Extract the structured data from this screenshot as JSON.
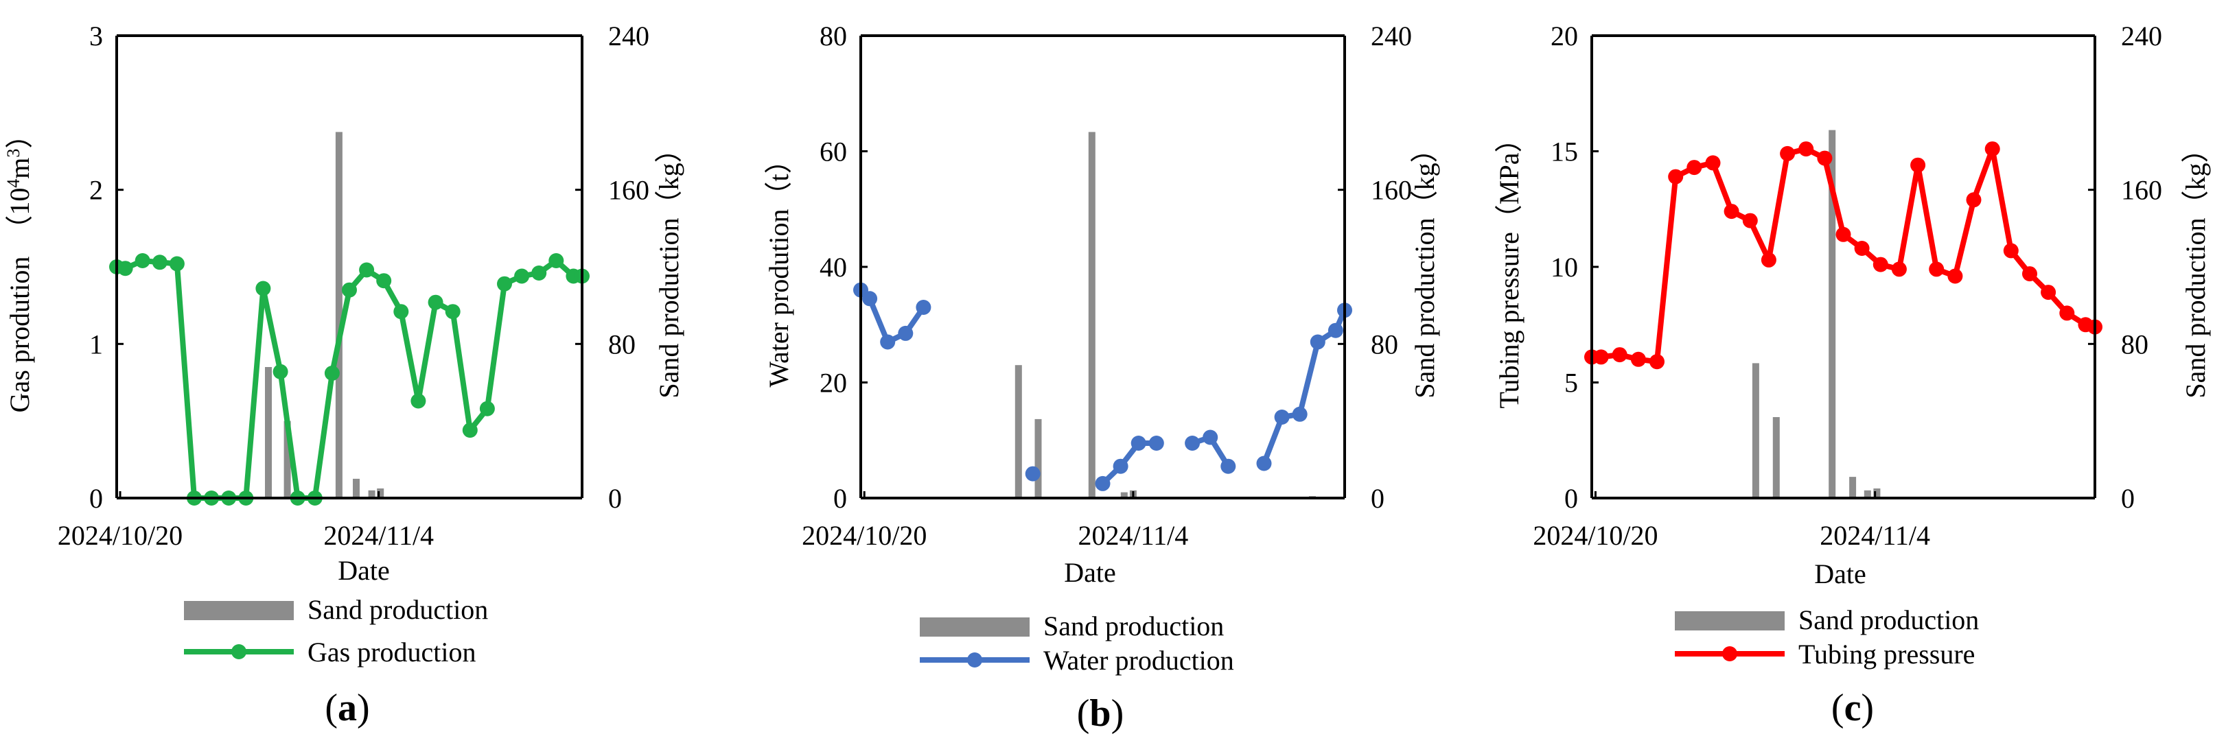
{
  "colors": {
    "sand": "#8c8c8c",
    "gas": "#1fb04a",
    "water": "#4472c4",
    "pressure": "#ff0000",
    "axis": "#000000"
  },
  "chart_data": [
    {
      "id": "a",
      "panel_label": {
        "open": "(",
        "letter": "a",
        "close": ")"
      },
      "type": "bar+line",
      "xlabel": "Date",
      "x_ticks": [
        "2024/10/20",
        "2024/11/4"
      ],
      "left_axis": {
        "label_parts": [
          "Gas prodution　（10",
          "4",
          "m",
          "3",
          "）"
        ],
        "ticks": [
          "0",
          "1",
          "2",
          "3"
        ],
        "range": [
          0,
          3
        ]
      },
      "right_axis": {
        "label": "Sand production（kg）",
        "ticks": [
          "0",
          "80",
          "160",
          "240"
        ],
        "range": [
          0,
          240
        ]
      },
      "legend": [
        "Sand production",
        "Gas production"
      ],
      "sand": [
        {
          "day": 8.6,
          "value": 68
        },
        {
          "day": 9.7,
          "value": 40
        },
        {
          "day": 12.7,
          "value": 190
        },
        {
          "day": 13.7,
          "value": 10
        },
        {
          "day": 14.6,
          "value": 4
        },
        {
          "day": 15.1,
          "value": 5
        }
      ],
      "line": {
        "name": "Gas production",
        "segments": [
          [
            {
              "day": -0.2,
              "value": 1.5
            },
            {
              "day": 0.3,
              "value": 1.49
            },
            {
              "day": 1.3,
              "value": 1.54
            },
            {
              "day": 2.3,
              "value": 1.53
            },
            {
              "day": 3.3,
              "value": 1.52
            },
            {
              "day": 4.3,
              "value": 0
            },
            {
              "day": 5.3,
              "value": 0
            },
            {
              "day": 6.3,
              "value": 0
            },
            {
              "day": 7.3,
              "value": 0
            },
            {
              "day": 8.3,
              "value": 1.36
            },
            {
              "day": 9.3,
              "value": 0.82
            },
            {
              "day": 10.3,
              "value": 0
            },
            {
              "day": 11.3,
              "value": 0
            },
            {
              "day": 12.3,
              "value": 0.81
            },
            {
              "day": 13.3,
              "value": 1.35
            },
            {
              "day": 14.3,
              "value": 1.48
            },
            {
              "day": 15.3,
              "value": 1.41
            },
            {
              "day": 16.3,
              "value": 1.21
            },
            {
              "day": 17.3,
              "value": 0.63
            },
            {
              "day": 18.3,
              "value": 1.27
            },
            {
              "day": 19.3,
              "value": 1.21
            },
            {
              "day": 20.3,
              "value": 0.44
            },
            {
              "day": 21.3,
              "value": 0.58
            },
            {
              "day": 22.3,
              "value": 1.39
            },
            {
              "day": 23.3,
              "value": 1.44
            },
            {
              "day": 24.3,
              "value": 1.46
            },
            {
              "day": 25.3,
              "value": 1.54
            },
            {
              "day": 26.3,
              "value": 1.44
            },
            {
              "day": 26.8,
              "value": 1.44
            }
          ]
        ]
      }
    },
    {
      "id": "b",
      "panel_label": {
        "open": "(",
        "letter": "b",
        "close": ")"
      },
      "type": "bar+line",
      "xlabel": "Date",
      "x_ticks": [
        "2024/10/20",
        "2024/11/4"
      ],
      "left_axis": {
        "label_parts": [
          "Water prodution（t）"
        ],
        "ticks": [
          "0",
          "20",
          "40",
          "60",
          "80"
        ],
        "range": [
          0,
          80
        ]
      },
      "right_axis": {
        "label": "Sand production（kg）",
        "ticks": [
          "0",
          "80",
          "160",
          "240"
        ],
        "range": [
          0,
          240
        ]
      },
      "legend": [
        "Sand production",
        "Water production"
      ],
      "sand": [
        {
          "day": 8.6,
          "value": 69
        },
        {
          "day": 9.7,
          "value": 41
        },
        {
          "day": 12.7,
          "value": 190
        },
        {
          "day": 14.5,
          "value": 3
        },
        {
          "day": 15.0,
          "value": 4
        },
        {
          "day": 25.0,
          "value": 1
        }
      ],
      "line": {
        "name": "Water production",
        "segments": [
          [
            {
              "day": -0.2,
              "value": 36
            },
            {
              "day": 0.3,
              "value": 34.5
            },
            {
              "day": 1.3,
              "value": 27
            },
            {
              "day": 2.3,
              "value": 28.5
            },
            {
              "day": 3.3,
              "value": 33
            }
          ],
          [
            {
              "day": 9.4,
              "value": 4.2
            }
          ],
          [
            {
              "day": 13.3,
              "value": 2.5
            },
            {
              "day": 14.3,
              "value": 5.5
            },
            {
              "day": 15.3,
              "value": 9.5
            },
            {
              "day": 16.3,
              "value": 9.5
            }
          ],
          [
            {
              "day": 18.3,
              "value": 9.5
            },
            {
              "day": 19.3,
              "value": 10.5
            },
            {
              "day": 20.3,
              "value": 5.5
            }
          ],
          [
            {
              "day": 22.3,
              "value": 6.0
            },
            {
              "day": 23.3,
              "value": 14.0
            },
            {
              "day": 24.3,
              "value": 14.5
            },
            {
              "day": 25.3,
              "value": 27.0
            },
            {
              "day": 26.3,
              "value": 29.0
            },
            {
              "day": 26.8,
              "value": 32.5
            }
          ]
        ]
      }
    },
    {
      "id": "c",
      "panel_label": {
        "open": "(",
        "letter": "c",
        "close": ")"
      },
      "type": "bar+line",
      "xlabel": "Date",
      "x_ticks": [
        "2024/10/20",
        "2024/11/4"
      ],
      "left_axis": {
        "label_parts": [
          "Tubing pressure（MPa）"
        ],
        "ticks": [
          "0",
          "5",
          "10",
          "15",
          "20"
        ],
        "range": [
          0,
          20
        ]
      },
      "right_axis": {
        "label": "Sand production（kg）",
        "ticks": [
          "0",
          "80",
          "160",
          "240"
        ],
        "range": [
          0,
          240
        ]
      },
      "legend": [
        "Sand production",
        "Tubing pressure"
      ],
      "sand": [
        {
          "day": 8.6,
          "value": 70
        },
        {
          "day": 9.7,
          "value": 42
        },
        {
          "day": 12.7,
          "value": 191
        },
        {
          "day": 13.8,
          "value": 11
        },
        {
          "day": 14.6,
          "value": 4
        },
        {
          "day": 15.1,
          "value": 5
        }
      ],
      "line": {
        "name": "Tubing pressure",
        "segments": [
          [
            {
              "day": -0.2,
              "value": 6.1
            },
            {
              "day": 0.3,
              "value": 6.1
            },
            {
              "day": 1.3,
              "value": 6.2
            },
            {
              "day": 2.3,
              "value": 6.0
            },
            {
              "day": 3.3,
              "value": 5.9
            },
            {
              "day": 4.3,
              "value": 13.9
            },
            {
              "day": 5.3,
              "value": 14.3
            },
            {
              "day": 6.3,
              "value": 14.5
            },
            {
              "day": 7.3,
              "value": 12.4
            },
            {
              "day": 8.3,
              "value": 12.0
            },
            {
              "day": 9.3,
              "value": 10.3
            },
            {
              "day": 10.3,
              "value": 14.9
            },
            {
              "day": 11.3,
              "value": 15.1
            },
            {
              "day": 12.3,
              "value": 14.7
            },
            {
              "day": 13.3,
              "value": 11.4
            },
            {
              "day": 14.3,
              "value": 10.8
            },
            {
              "day": 15.3,
              "value": 10.1
            },
            {
              "day": 16.3,
              "value": 9.9
            },
            {
              "day": 17.3,
              "value": 14.4
            },
            {
              "day": 18.3,
              "value": 9.9
            },
            {
              "day": 19.3,
              "value": 9.6
            },
            {
              "day": 20.3,
              "value": 12.9
            },
            {
              "day": 21.3,
              "value": 15.1
            },
            {
              "day": 22.3,
              "value": 10.7
            },
            {
              "day": 23.3,
              "value": 9.7
            },
            {
              "day": 24.3,
              "value": 8.9
            },
            {
              "day": 25.3,
              "value": 8.0
            },
            {
              "day": 26.3,
              "value": 7.5
            },
            {
              "day": 26.8,
              "value": 7.4
            }
          ]
        ]
      }
    }
  ]
}
